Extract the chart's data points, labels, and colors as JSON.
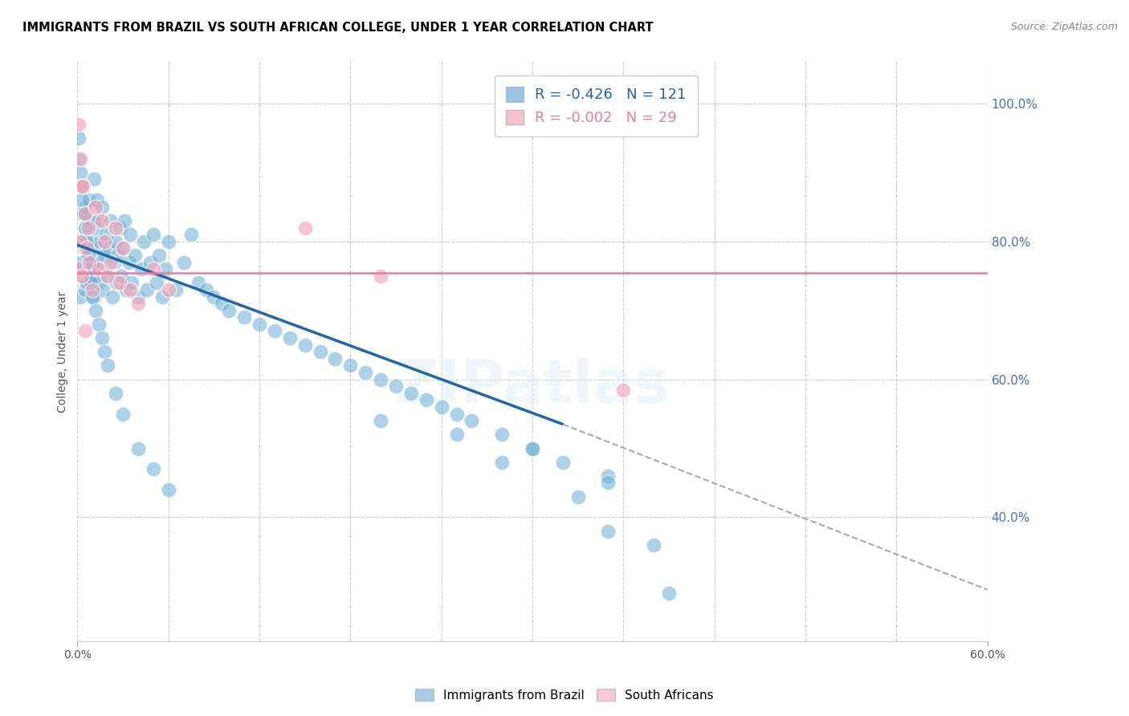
{
  "title": "IMMIGRANTS FROM BRAZIL VS SOUTH AFRICAN COLLEGE, UNDER 1 YEAR CORRELATION CHART",
  "source": "Source: ZipAtlas.com",
  "ylabel": "College, Under 1 year",
  "xlim": [
    0.0,
    0.6
  ],
  "ylim": [
    0.22,
    1.06
  ],
  "brazil_color": "#6aaed6",
  "sa_color": "#f4a7b9",
  "brazil_R": -0.426,
  "brazil_N": 121,
  "sa_R": -0.002,
  "sa_N": 29,
  "legend_brazil": "Immigrants from Brazil",
  "legend_sa": "South Africans",
  "axis_label_color": "#4472c4",
  "brazil_scatter_x": [
    0.002,
    0.002,
    0.002,
    0.003,
    0.003,
    0.004,
    0.004,
    0.005,
    0.005,
    0.005,
    0.006,
    0.006,
    0.007,
    0.007,
    0.008,
    0.008,
    0.009,
    0.009,
    0.01,
    0.01,
    0.011,
    0.011,
    0.012,
    0.012,
    0.013,
    0.013,
    0.014,
    0.014,
    0.015,
    0.015,
    0.016,
    0.017,
    0.018,
    0.019,
    0.02,
    0.021,
    0.022,
    0.023,
    0.024,
    0.025,
    0.026,
    0.027,
    0.028,
    0.029,
    0.03,
    0.031,
    0.032,
    0.034,
    0.035,
    0.036,
    0.038,
    0.04,
    0.042,
    0.044,
    0.046,
    0.048,
    0.05,
    0.052,
    0.054,
    0.056,
    0.058,
    0.06,
    0.065,
    0.07,
    0.075,
    0.08,
    0.085,
    0.09,
    0.095,
    0.1,
    0.11,
    0.12,
    0.13,
    0.14,
    0.15,
    0.16,
    0.17,
    0.18,
    0.19,
    0.2,
    0.21,
    0.22,
    0.23,
    0.24,
    0.25,
    0.26,
    0.28,
    0.3,
    0.32,
    0.35,
    0.001,
    0.001,
    0.002,
    0.003,
    0.003,
    0.004,
    0.005,
    0.006,
    0.007,
    0.008,
    0.009,
    0.01,
    0.012,
    0.014,
    0.016,
    0.018,
    0.02,
    0.025,
    0.03,
    0.04,
    0.05,
    0.06,
    0.2,
    0.25,
    0.3,
    0.35,
    0.28,
    0.33,
    0.35,
    0.38,
    0.39
  ],
  "brazil_scatter_y": [
    0.76,
    0.72,
    0.8,
    0.77,
    0.84,
    0.75,
    0.88,
    0.73,
    0.79,
    0.85,
    0.74,
    0.82,
    0.76,
    0.83,
    0.78,
    0.86,
    0.75,
    0.8,
    0.77,
    0.83,
    0.89,
    0.72,
    0.82,
    0.75,
    0.79,
    0.86,
    0.74,
    0.83,
    0.77,
    0.8,
    0.85,
    0.73,
    0.78,
    0.81,
    0.75,
    0.79,
    0.83,
    0.72,
    0.77,
    0.8,
    0.74,
    0.78,
    0.82,
    0.75,
    0.79,
    0.83,
    0.73,
    0.77,
    0.81,
    0.74,
    0.78,
    0.72,
    0.76,
    0.8,
    0.73,
    0.77,
    0.81,
    0.74,
    0.78,
    0.72,
    0.76,
    0.8,
    0.73,
    0.77,
    0.81,
    0.74,
    0.73,
    0.72,
    0.71,
    0.7,
    0.69,
    0.68,
    0.67,
    0.66,
    0.65,
    0.64,
    0.63,
    0.62,
    0.61,
    0.6,
    0.59,
    0.58,
    0.57,
    0.56,
    0.55,
    0.54,
    0.52,
    0.5,
    0.48,
    0.46,
    0.95,
    0.92,
    0.9,
    0.88,
    0.86,
    0.84,
    0.82,
    0.8,
    0.78,
    0.76,
    0.74,
    0.72,
    0.7,
    0.68,
    0.66,
    0.64,
    0.62,
    0.58,
    0.55,
    0.5,
    0.47,
    0.44,
    0.54,
    0.52,
    0.5,
    0.45,
    0.48,
    0.43,
    0.38,
    0.36,
    0.29
  ],
  "sa_scatter_x": [
    0.001,
    0.002,
    0.003,
    0.004,
    0.005,
    0.006,
    0.007,
    0.008,
    0.01,
    0.012,
    0.014,
    0.016,
    0.018,
    0.02,
    0.022,
    0.025,
    0.028,
    0.03,
    0.035,
    0.04,
    0.05,
    0.06,
    0.15,
    0.2,
    0.36,
    0.001,
    0.002,
    0.003,
    0.005
  ],
  "sa_scatter_y": [
    0.76,
    0.8,
    0.75,
    0.88,
    0.84,
    0.79,
    0.82,
    0.77,
    0.73,
    0.85,
    0.76,
    0.83,
    0.8,
    0.75,
    0.77,
    0.82,
    0.74,
    0.79,
    0.73,
    0.71,
    0.76,
    0.73,
    0.82,
    0.75,
    0.585,
    0.97,
    0.92,
    0.88,
    0.67
  ],
  "blue_line_x0": 0.0,
  "blue_line_x1": 0.32,
  "blue_line_y0": 0.795,
  "blue_line_y1": 0.535,
  "dash_line_x0": 0.32,
  "dash_line_x1": 0.6,
  "dash_line_y0": 0.535,
  "dash_line_y1": 0.295,
  "pink_line_x0": 0.0,
  "pink_line_x1": 0.6,
  "pink_line_y0": 0.754,
  "pink_line_y1": 0.754,
  "ytick_vals": [
    1.0,
    0.8,
    0.6,
    0.4
  ],
  "ytick_labels": [
    "100.0%",
    "80.0%",
    "60.0%",
    "40.0%"
  ]
}
